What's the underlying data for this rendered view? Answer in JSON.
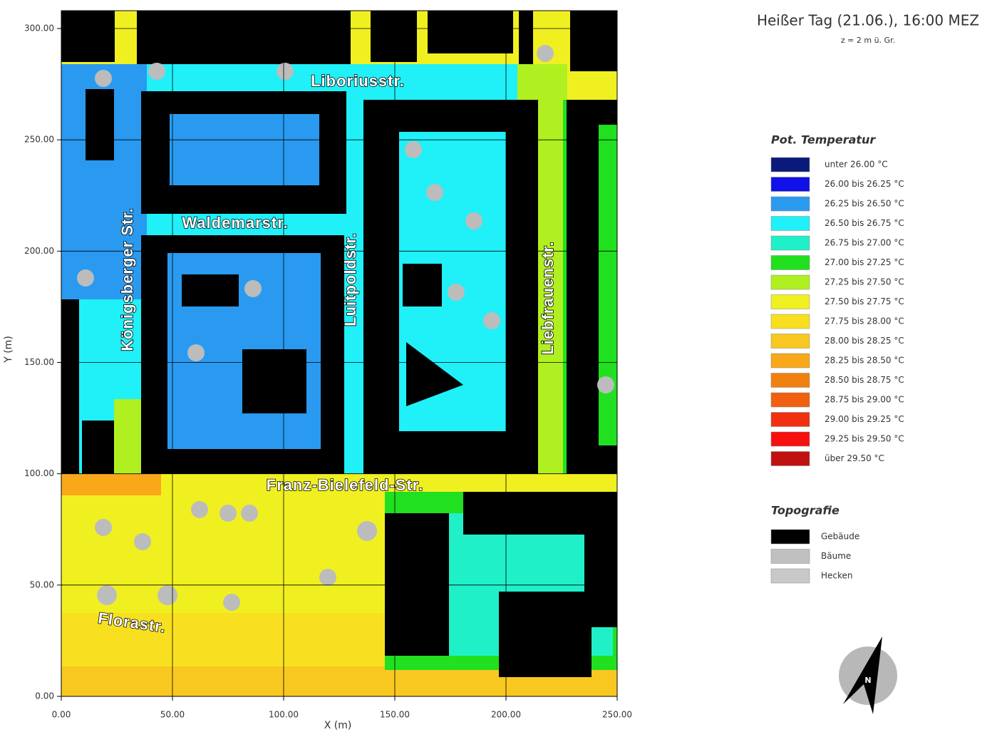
{
  "title": "Heißer Tag (21.06.), 16:00 MEZ",
  "subtitle": "z = 2 m ü. Gr.",
  "map": {
    "xlabel": "X (m)",
    "ylabel": "Y (m)",
    "xlim": [
      0,
      250
    ],
    "ylim": [
      0,
      300
    ],
    "xticks": [
      {
        "value": 0,
        "label": "0.00"
      },
      {
        "value": 50,
        "label": "50.00"
      },
      {
        "value": 100,
        "label": "100.00"
      },
      {
        "value": 150,
        "label": "150.00"
      },
      {
        "value": 200,
        "label": "200.00"
      },
      {
        "value": 250,
        "label": "250.00"
      }
    ],
    "yticks": [
      {
        "value": 0,
        "label": "0.00"
      },
      {
        "value": 50,
        "label": "50.00"
      },
      {
        "value": 100,
        "label": "100.00"
      },
      {
        "value": 150,
        "label": "150.00"
      },
      {
        "value": 200,
        "label": "200.00"
      },
      {
        "value": 250,
        "label": "250.00"
      },
      {
        "value": 300,
        "label": "300.00"
      }
    ],
    "grid": true,
    "streets": [
      "Liboriusstr.",
      "Waldemarstr.",
      "Königsberger Str.",
      "Luitpoldstr.",
      "Liebfrauenstr.",
      "Franz-Bielefeld-Str.",
      "Florastr."
    ]
  },
  "legend": {
    "title": "Pot. Temperatur",
    "items": [
      {
        "name": "unter 26.00 °C",
        "color": "#0a1a7a"
      },
      {
        "name": "26.00 bis 26.25 °C",
        "color": "#1010e8"
      },
      {
        "name": "26.25 bis 26.50 °C",
        "color": "#2a9af0"
      },
      {
        "name": "26.50 bis 26.75 °C",
        "color": "#20f0f8"
      },
      {
        "name": "26.75 bis 27.00 °C",
        "color": "#20f0c8"
      },
      {
        "name": "27.00 bis 27.25 °C",
        "color": "#20e020"
      },
      {
        "name": "27.25 bis 27.50 °C",
        "color": "#b0f020"
      },
      {
        "name": "27.50 bis 27.75 °C",
        "color": "#f0f020"
      },
      {
        "name": "27.75 bis 28.00 °C",
        "color": "#f8e020"
      },
      {
        "name": "28.00 bis 28.25 °C",
        "color": "#f8c820"
      },
      {
        "name": "28.25 bis 28.50 °C",
        "color": "#f8a818"
      },
      {
        "name": "28.50 bis 28.75 °C",
        "color": "#f08010"
      },
      {
        "name": "28.75 bis 29.00 °C",
        "color": "#f06010"
      },
      {
        "name": "29.00 bis 29.25 °C",
        "color": "#f03010"
      },
      {
        "name": "29.25 bis 29.50 °C",
        "color": "#f81010"
      },
      {
        "name": "über 29.50 °C",
        "color": "#c01010"
      }
    ]
  },
  "topography": {
    "title": "Topografie",
    "items": [
      {
        "name": "Gebäude",
        "color": "#000000"
      },
      {
        "name": "Bäume",
        "color": "#c0c0c0"
      },
      {
        "name": "Hecken",
        "color": "#c8c8c8"
      }
    ]
  },
  "compass": {
    "label": "N"
  }
}
